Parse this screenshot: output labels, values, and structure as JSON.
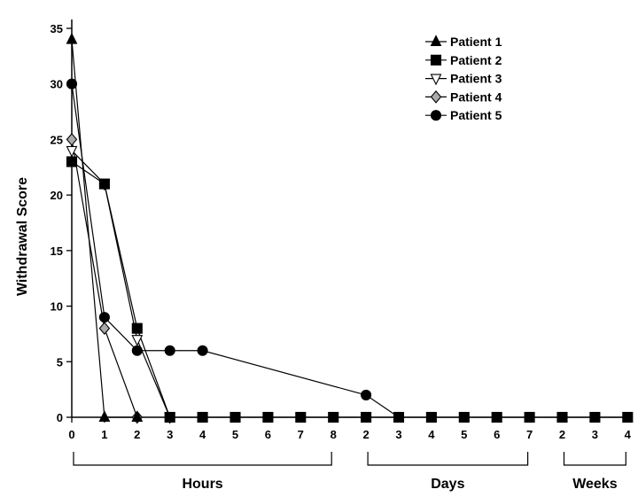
{
  "chart_data": {
    "type": "line",
    "title": "",
    "ylabel": "Withdrawal Score",
    "ylim": [
      0,
      35
    ],
    "yticks": [
      0,
      5,
      10,
      15,
      20,
      25,
      30,
      35
    ],
    "x_tick_labels": [
      "0",
      "1",
      "2",
      "3",
      "4",
      "5",
      "6",
      "7",
      "8",
      "2",
      "3",
      "4",
      "5",
      "6",
      "7",
      "2",
      "3",
      "4"
    ],
    "x_groups": [
      {
        "label": "Hours",
        "from": 0,
        "to": 8
      },
      {
        "label": "Days",
        "from": 9,
        "to": 14
      },
      {
        "label": "Weeks",
        "from": 15,
        "to": 17
      }
    ],
    "legend_position": "top-right",
    "series": [
      {
        "name": "Patient 1",
        "marker": "triangle-up",
        "fill": "#000000",
        "points": [
          [
            0,
            34
          ],
          [
            1,
            0
          ],
          [
            2,
            0
          ]
        ]
      },
      {
        "name": "Patient 2",
        "marker": "square",
        "fill": "#000000",
        "points": [
          [
            0,
            23
          ],
          [
            1,
            21
          ],
          [
            2,
            8
          ],
          [
            3,
            0
          ],
          [
            4,
            0
          ],
          [
            5,
            0
          ],
          [
            6,
            0
          ],
          [
            7,
            0
          ],
          [
            8,
            0
          ],
          [
            9,
            0
          ],
          [
            10,
            0
          ],
          [
            11,
            0
          ],
          [
            12,
            0
          ],
          [
            13,
            0
          ],
          [
            14,
            0
          ],
          [
            15,
            0
          ],
          [
            16,
            0
          ],
          [
            17,
            0
          ]
        ]
      },
      {
        "name": "Patient 3",
        "marker": "triangle-down",
        "fill": "#ffffff",
        "points": [
          [
            0,
            24
          ],
          [
            1,
            21
          ],
          [
            2,
            7
          ],
          [
            3,
            0
          ]
        ]
      },
      {
        "name": "Patient 4",
        "marker": "diamond",
        "fill": "#aaaaaa",
        "points": [
          [
            0,
            25
          ],
          [
            1,
            8
          ],
          [
            2,
            0
          ]
        ]
      },
      {
        "name": "Patient 5",
        "marker": "circle",
        "fill": "#000000",
        "points": [
          [
            0,
            30
          ],
          [
            1,
            9
          ],
          [
            2,
            6
          ],
          [
            3,
            6
          ],
          [
            4,
            6
          ],
          [
            9,
            2
          ],
          [
            10,
            0
          ]
        ]
      }
    ]
  }
}
